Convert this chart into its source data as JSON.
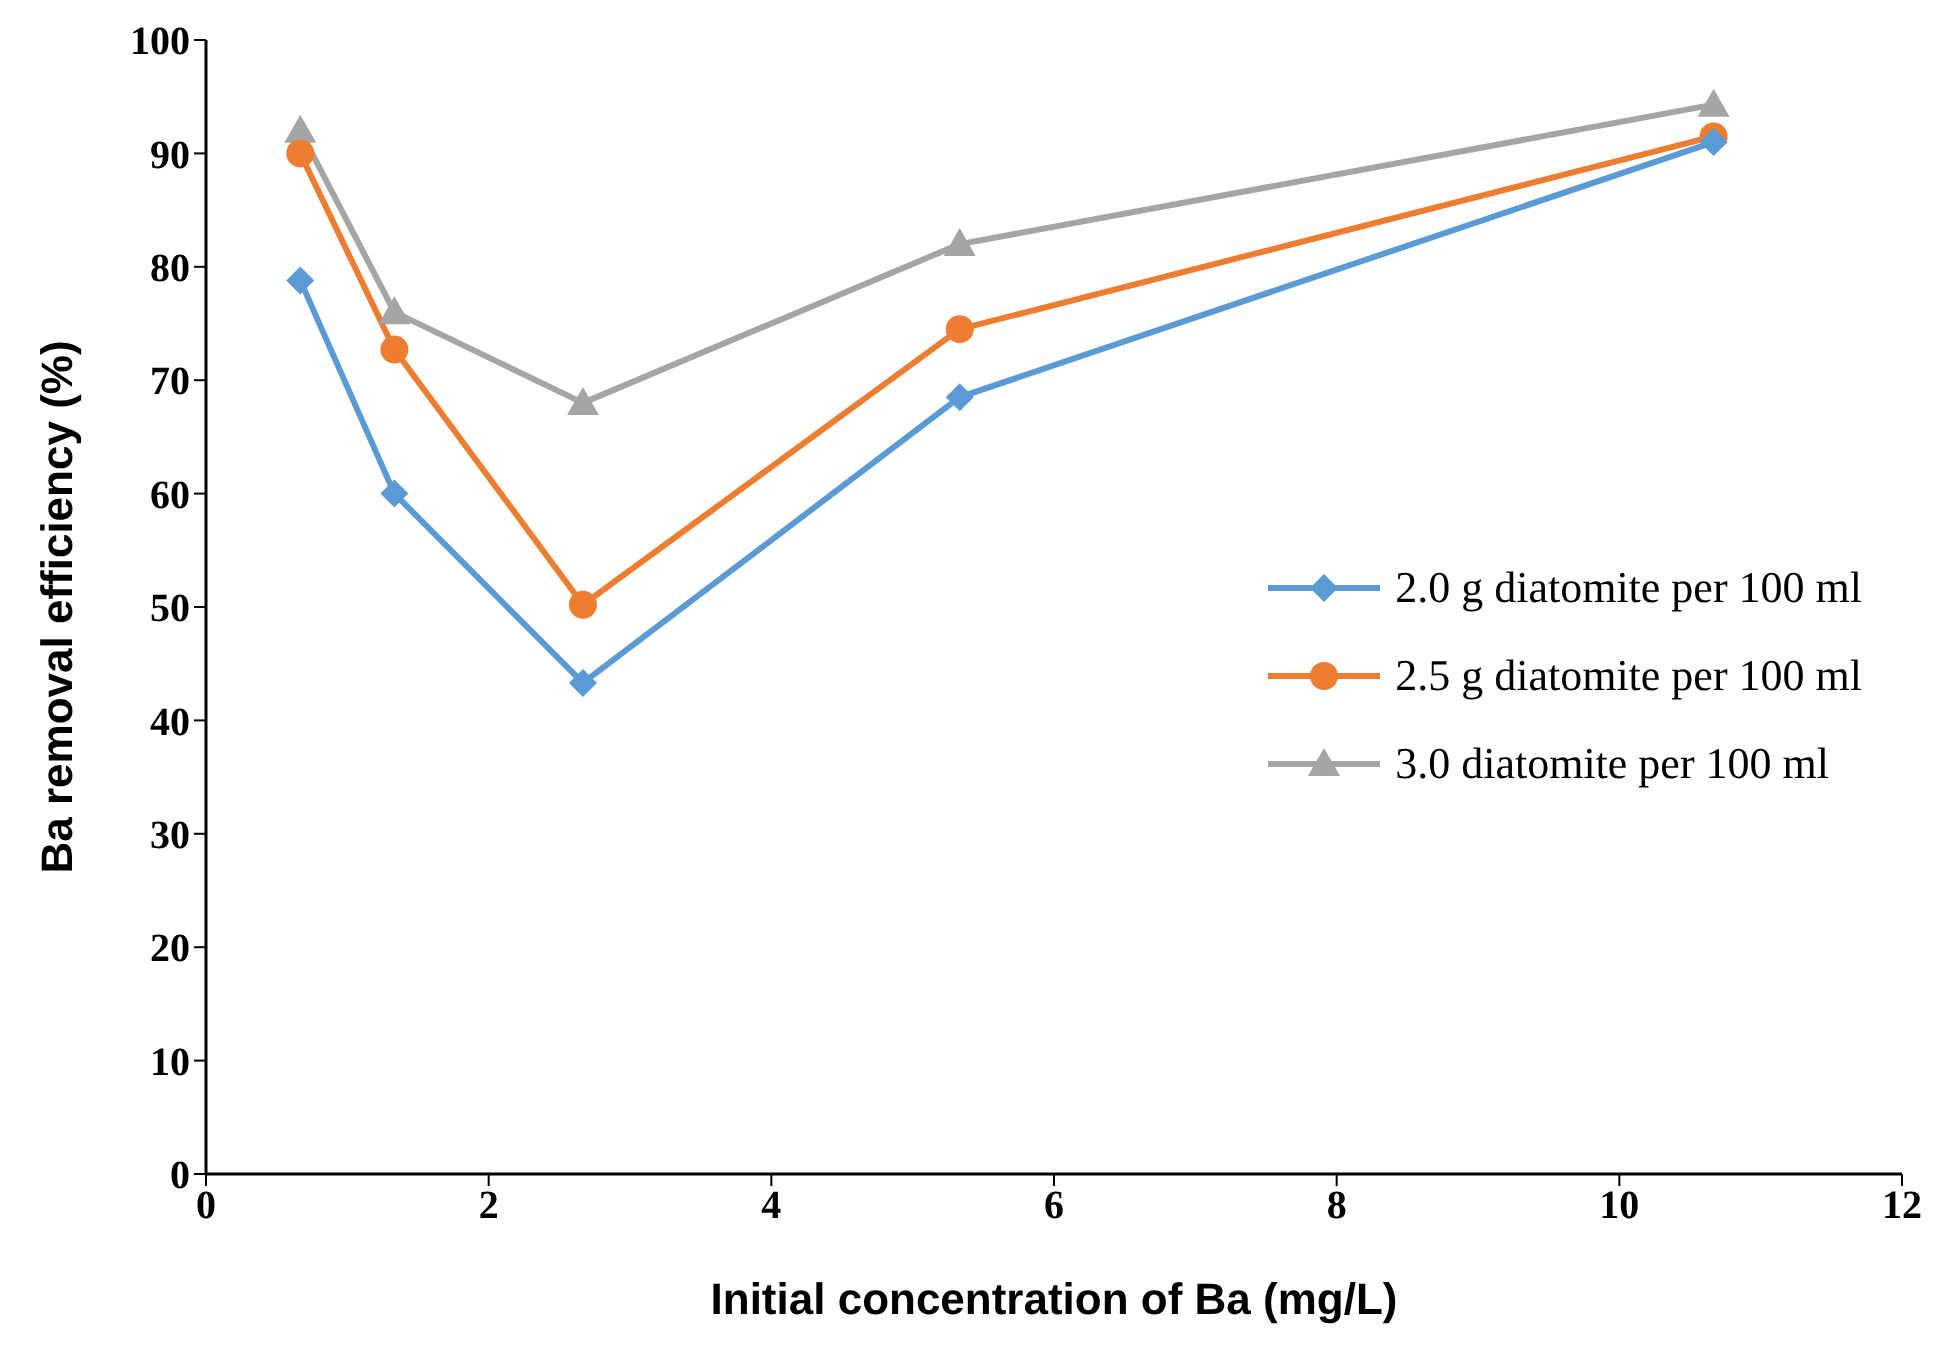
{
  "chart_data": {
    "type": "line",
    "xlabel": "Initial concentration of Ba (mg/L)",
    "ylabel": "Ba removal efficiency (%)",
    "x": [
      0.667,
      1.333,
      2.667,
      5.333,
      10.667
    ],
    "series": [
      {
        "name": "2.0 g diatomite per 100 ml",
        "color": "#5b9bd5",
        "marker": "diamond",
        "values": [
          78.8,
          60,
          43.3,
          68.5,
          91
        ]
      },
      {
        "name": "2.5 g diatomite per 100 ml",
        "color": "#ed7d31",
        "marker": "circle",
        "values": [
          90,
          72.7,
          50.2,
          74.5,
          91.5
        ]
      },
      {
        "name": "3.0 diatomite per 100 ml",
        "color": "#a5a5a5",
        "marker": "triangle",
        "values": [
          92,
          76,
          68,
          82,
          94.3
        ]
      }
    ],
    "xlim": [
      0,
      12
    ],
    "xticks": [
      0,
      2,
      4,
      6,
      8,
      10,
      12
    ],
    "ylim": [
      0,
      100
    ],
    "yticks": [
      0,
      10,
      20,
      30,
      40,
      50,
      60,
      70,
      80,
      90,
      100
    ],
    "grid": false,
    "legend": "right",
    "line_style": "solid"
  }
}
